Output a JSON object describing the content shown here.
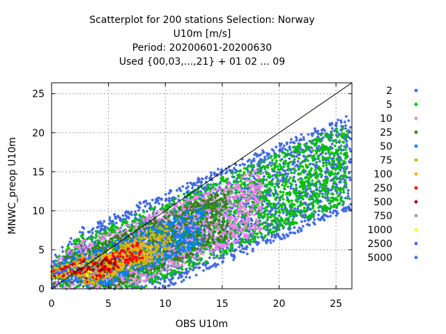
{
  "chart_data": {
    "type": "scatter",
    "title_lines": [
      "Scatterplot for  200 stations Selection: Norway",
      "U10m [m/s]",
      "Period: 20200601-20200630",
      "Used {00,03,...,21} + 01 02 ... 09"
    ],
    "xlabel": "OBS U10m",
    "ylabel": "MNWC_preop U10m",
    "xlim": [
      0,
      26.4
    ],
    "ylim": [
      0,
      26.4
    ],
    "xticks": [
      0,
      5,
      10,
      15,
      20,
      25
    ],
    "yticks": [
      0,
      5,
      10,
      15,
      20,
      25
    ],
    "grid": true,
    "legend_position": "right",
    "diagonal_line": true,
    "series": [
      {
        "name": "2",
        "color": "#4169e1"
      },
      {
        "name": "5",
        "color": "#00c000"
      },
      {
        "name": "10",
        "color": "#ee82ee"
      },
      {
        "name": "25",
        "color": "#3a7d16"
      },
      {
        "name": "50",
        "color": "#0080ff"
      },
      {
        "name": "75",
        "color": "#c8b400"
      },
      {
        "name": "100",
        "color": "#ffb000"
      },
      {
        "name": "250",
        "color": "#ff0000"
      },
      {
        "name": "500",
        "color": "#a00000"
      },
      {
        "name": "750",
        "color": "#a0a0a0"
      },
      {
        "name": "1000",
        "color": "#ffff00"
      },
      {
        "name": "2500",
        "color": "#4169e1"
      },
      {
        "name": "5000",
        "color": "#4169e1"
      }
    ],
    "bands": [
      {
        "series": "2",
        "a": 0.62,
        "b": 1.8,
        "spread": 6.2,
        "xmax": 26.2
      },
      {
        "series": "5",
        "a": 0.62,
        "b": 1.8,
        "spread": 5.0,
        "xmax": 26.0
      },
      {
        "series": "10",
        "a": 0.62,
        "b": 1.8,
        "spread": 4.1,
        "xmax": 18.5
      },
      {
        "series": "25",
        "a": 0.62,
        "b": 1.8,
        "spread": 3.3,
        "xmax": 15.5
      },
      {
        "series": "50",
        "a": 0.62,
        "b": 1.8,
        "spread": 2.6,
        "xmax": 13.5
      },
      {
        "series": "75",
        "a": 0.62,
        "b": 1.8,
        "spread": 2.0,
        "xmax": 10.5
      },
      {
        "series": "100",
        "a": 0.62,
        "b": 1.8,
        "spread": 1.6,
        "xmax": 9.0
      },
      {
        "series": "250",
        "a": 0.62,
        "b": 1.8,
        "spread": 1.2,
        "xmax": 8.0
      },
      {
        "series": "500",
        "a": 0.62,
        "b": 1.8,
        "spread": 0.8,
        "xmax": 5.5
      },
      {
        "series": "750",
        "a": 0.62,
        "b": 1.8,
        "spread": 0.55,
        "xmax": 4.2
      },
      {
        "series": "1000",
        "a": 0.62,
        "b": 1.8,
        "spread": 0.35,
        "xmax": 3.6
      },
      {
        "series": "2500",
        "a": 0.62,
        "b": 1.8,
        "spread": 0.2,
        "xmax": 2.4
      },
      {
        "series": "5000",
        "a": 0.62,
        "b": 1.8,
        "spread": 0.1,
        "xmax": 1.4
      }
    ]
  }
}
